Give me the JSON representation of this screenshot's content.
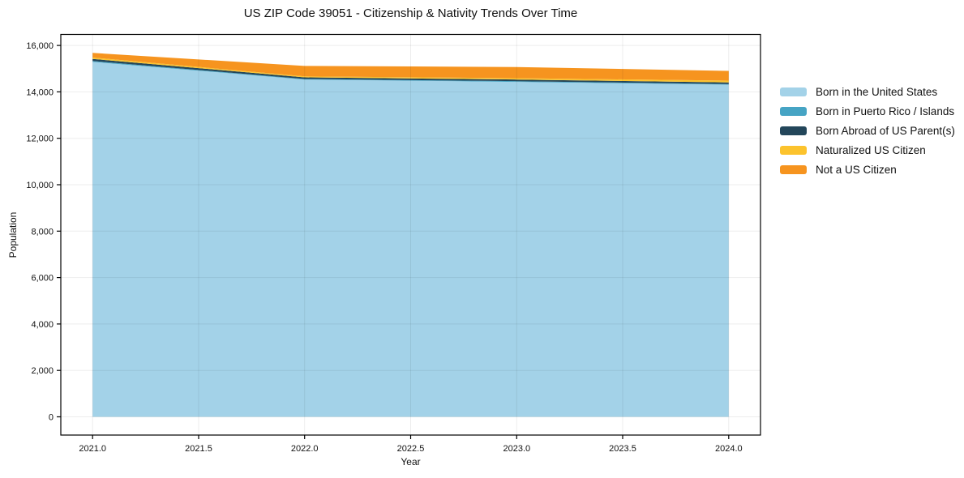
{
  "chart_data": {
    "type": "area",
    "stacked": true,
    "title": "US ZIP Code 39051 - Citizenship & Nativity Trends Over Time",
    "xlabel": "Year",
    "ylabel": "Population",
    "x": [
      2021,
      2022,
      2023,
      2024
    ],
    "series": [
      {
        "name": "Born in the United States",
        "color": "#A3D2E8",
        "values": [
          15290,
          14530,
          14430,
          14310
        ]
      },
      {
        "name": "Born in Puerto Rico / Islands",
        "color": "#46A4C4",
        "values": [
          40,
          25,
          30,
          25
        ]
      },
      {
        "name": "Born Abroad of US Parent(s)",
        "color": "#23465A",
        "values": [
          90,
          70,
          70,
          70
        ]
      },
      {
        "name": "Naturalized US Citizen",
        "color": "#FCC32D",
        "values": [
          60,
          40,
          60,
          80
        ]
      },
      {
        "name": "Not a US Citizen",
        "color": "#F6941F",
        "values": [
          200,
          450,
          480,
          420
        ]
      }
    ],
    "totals": [
      15680,
      15115,
      15070,
      14905
    ],
    "xlim": [
      2020.85,
      2024.15
    ],
    "ylim": [
      -784,
      16474
    ],
    "xticks": {
      "values": [
        2021.0,
        2021.5,
        2022.0,
        2022.5,
        2023.0,
        2023.5,
        2024.0
      ],
      "labels": [
        "2021.0",
        "2021.5",
        "2022.0",
        "2022.5",
        "2023.0",
        "2023.5",
        "2024.0"
      ]
    },
    "yticks": {
      "values": [
        0,
        2000,
        4000,
        6000,
        8000,
        10000,
        12000,
        14000,
        16000
      ],
      "labels": [
        "0",
        "2,000",
        "4,000",
        "6,000",
        "8,000",
        "10,000",
        "12,000",
        "14,000",
        "16,000"
      ]
    },
    "grid": true,
    "legend_position": "outside-right"
  },
  "colors": {
    "background": "#ffffff",
    "frame": "#000000",
    "grid": "rgba(0,0,0,0.07)",
    "tick": "#000000"
  }
}
